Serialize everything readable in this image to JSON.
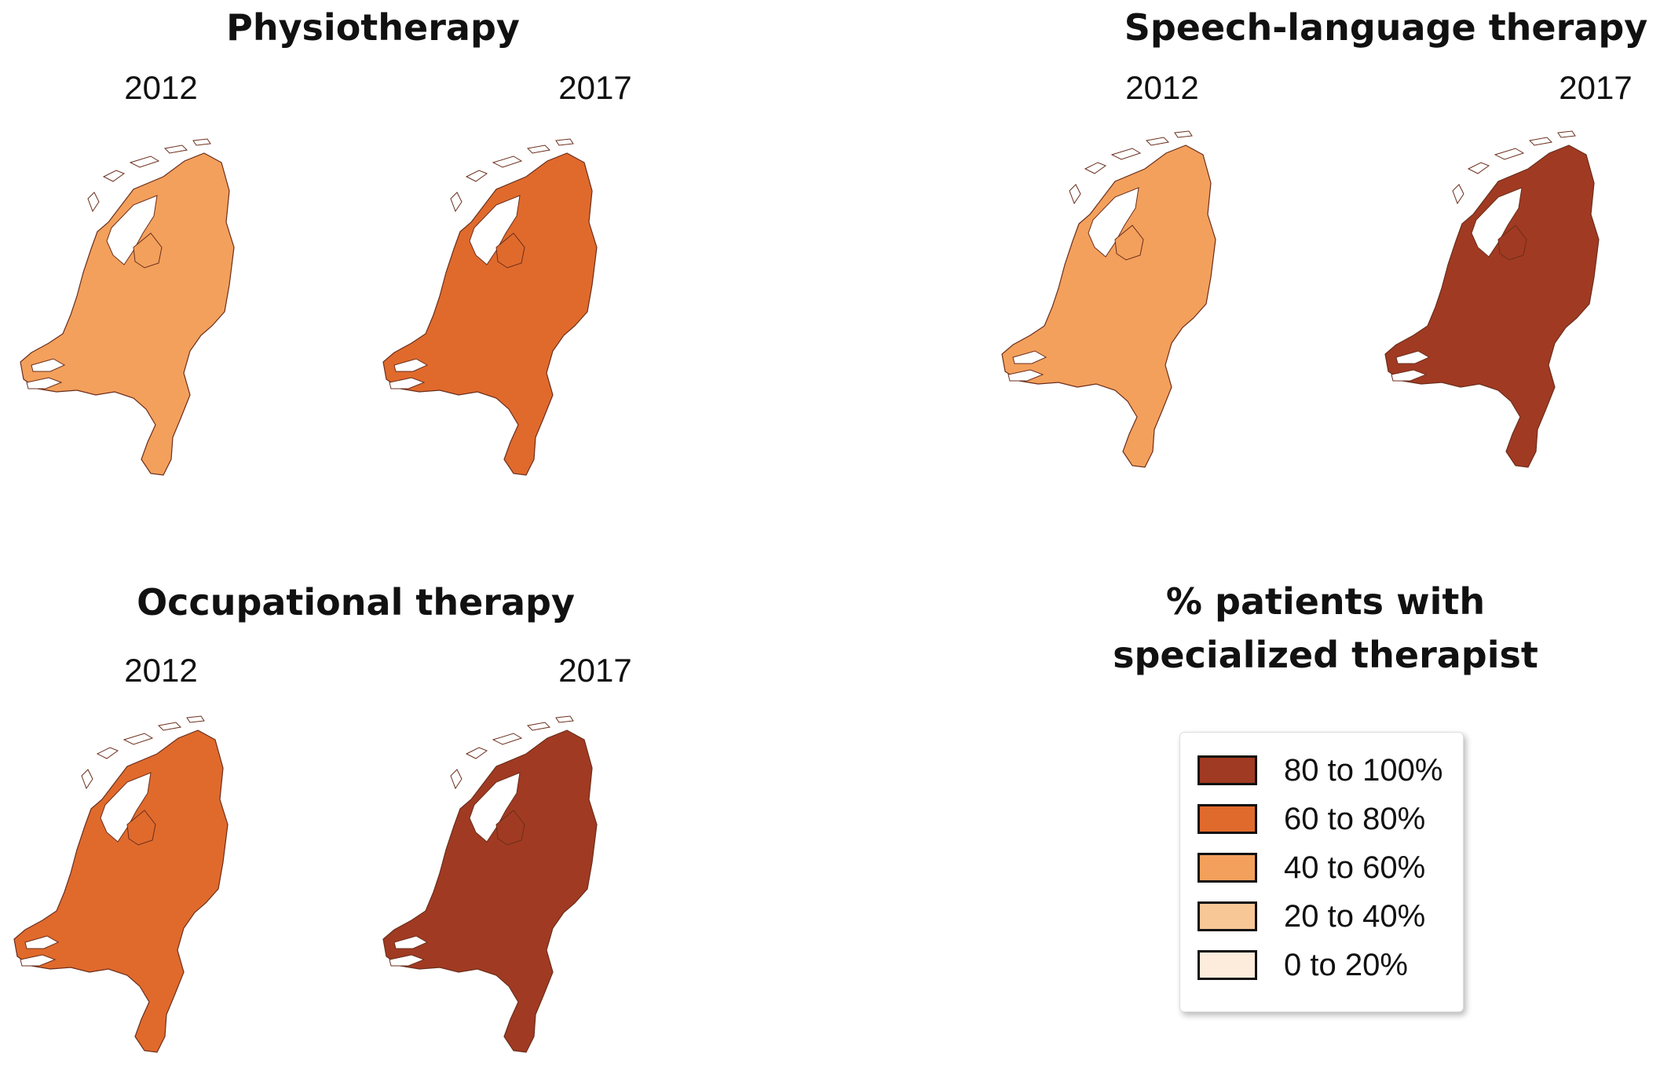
{
  "palette": {
    "80_100": "#a13a22",
    "60_80": "#e06a2c",
    "40_60": "#f3a05c",
    "20_40": "#f8c796",
    "0_20": "#fdebdc"
  },
  "panels": {
    "physio": {
      "title": "Physiotherapy",
      "year_left": "2012",
      "year_right": "2017",
      "map_2012": {
        "level": "40_60"
      },
      "map_2017": {
        "level": "60_80"
      }
    },
    "speech": {
      "title": "Speech-language therapy",
      "year_left": "2012",
      "year_right": "2017",
      "map_2012": {
        "level": "40_60"
      },
      "map_2017": {
        "level": "80_100"
      }
    },
    "occupational": {
      "title": "Occupational therapy",
      "year_left": "2012",
      "year_right": "2017",
      "map_2012": {
        "level": "60_80"
      },
      "map_2017": {
        "level": "80_100"
      }
    }
  },
  "legend": {
    "title_line1": "% patients with",
    "title_line2": "specialized therapist",
    "items": [
      {
        "label": "80 to 100%",
        "color": "#a13a22"
      },
      {
        "label": "60 to 80%",
        "color": "#e06a2c"
      },
      {
        "label": "40 to 60%",
        "color": "#f3a05c"
      },
      {
        "label": "20 to 40%",
        "color": "#f8c796"
      },
      {
        "label": "0 to 20%",
        "color": "#fdebdc"
      }
    ]
  }
}
